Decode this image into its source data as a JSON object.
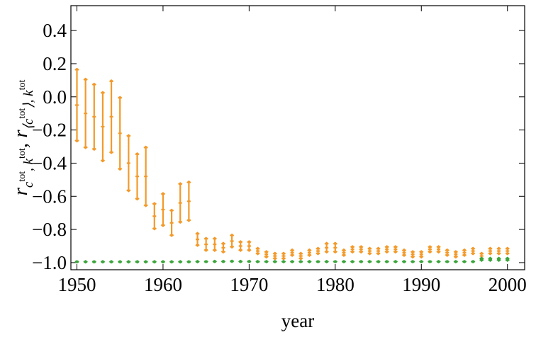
{
  "chart_data": {
    "type": "errorbar",
    "x_label": "year",
    "y_label": [
      "r",
      "c",
      "tot",
      ", ",
      "k",
      "tot",
      ", ",
      "r",
      "⟨c",
      "tot",
      "⟩, ",
      "k",
      "tot"
    ],
    "x": [
      1950,
      1951,
      1952,
      1953,
      1954,
      1955,
      1956,
      1957,
      1958,
      1959,
      1960,
      1961,
      1962,
      1963,
      1964,
      1965,
      1966,
      1967,
      1968,
      1969,
      1970,
      1971,
      1972,
      1973,
      1974,
      1975,
      1976,
      1977,
      1978,
      1979,
      1980,
      1981,
      1982,
      1983,
      1984,
      1985,
      1986,
      1987,
      1988,
      1989,
      1990,
      1991,
      1992,
      1993,
      1994,
      1995,
      1996,
      1997,
      1998,
      1999,
      2000
    ],
    "series": [
      {
        "color": "#f39a2a",
        "values": [
          -0.05,
          -0.1,
          -0.12,
          -0.18,
          -0.12,
          -0.22,
          -0.4,
          -0.48,
          -0.48,
          -0.72,
          -0.68,
          -0.76,
          -0.64,
          -0.63,
          -0.86,
          -0.89,
          -0.89,
          -0.91,
          -0.87,
          -0.9,
          -0.9,
          -0.93,
          -0.95,
          -0.96,
          -0.96,
          -0.94,
          -0.96,
          -0.94,
          -0.93,
          -0.91,
          -0.91,
          -0.94,
          -0.92,
          -0.92,
          -0.93,
          -0.93,
          -0.92,
          -0.92,
          -0.94,
          -0.95,
          -0.95,
          -0.92,
          -0.92,
          -0.94,
          -0.95,
          -0.94,
          -0.93,
          -0.96,
          -0.93,
          -0.93,
          -0.93
        ],
        "errors": [
          0.22,
          0.21,
          0.2,
          0.21,
          0.22,
          0.22,
          0.17,
          0.14,
          0.18,
          0.08,
          0.1,
          0.08,
          0.12,
          0.12,
          0.04,
          0.04,
          0.04,
          0.03,
          0.04,
          0.03,
          0.03,
          0.02,
          0.02,
          0.02,
          0.02,
          0.02,
          0.02,
          0.02,
          0.02,
          0.03,
          0.03,
          0.02,
          0.02,
          0.02,
          0.02,
          0.02,
          0.02,
          0.02,
          0.02,
          0.02,
          0.02,
          0.02,
          0.02,
          0.02,
          0.02,
          0.02,
          0.02,
          0.02,
          0.02,
          0.02,
          0.02
        ]
      },
      {
        "color": "#3ba53b",
        "values": [
          -0.995,
          -0.995,
          -0.995,
          -0.995,
          -0.995,
          -0.995,
          -0.995,
          -0.995,
          -0.995,
          -0.995,
          -0.995,
          -0.995,
          -0.995,
          -0.995,
          -0.994,
          -0.994,
          -0.993,
          -0.993,
          -0.992,
          -0.993,
          -0.993,
          -0.994,
          -0.994,
          -0.994,
          -0.994,
          -0.994,
          -0.994,
          -0.994,
          -0.994,
          -0.994,
          -0.994,
          -0.994,
          -0.994,
          -0.994,
          -0.994,
          -0.994,
          -0.994,
          -0.994,
          -0.994,
          -0.994,
          -0.994,
          -0.994,
          -0.994,
          -0.994,
          -0.994,
          -0.994,
          -0.994,
          -0.98,
          -0.98,
          -0.98,
          -0.98
        ],
        "errors": [
          0.005,
          0.005,
          0.005,
          0.005,
          0.005,
          0.005,
          0.005,
          0.005,
          0.005,
          0.005,
          0.005,
          0.005,
          0.005,
          0.005,
          0.005,
          0.005,
          0.005,
          0.005,
          0.005,
          0.005,
          0.005,
          0.005,
          0.005,
          0.005,
          0.005,
          0.005,
          0.005,
          0.005,
          0.005,
          0.005,
          0.005,
          0.005,
          0.005,
          0.005,
          0.005,
          0.005,
          0.005,
          0.005,
          0.005,
          0.005,
          0.005,
          0.005,
          0.005,
          0.005,
          0.005,
          0.005,
          0.005,
          0.01,
          0.01,
          0.01,
          0.01
        ]
      }
    ],
    "xlim": [
      1949.3,
      2002
    ],
    "ylim": [
      -1.043,
      0.55
    ],
    "xticks": [
      1950,
      1960,
      1970,
      1980,
      1990,
      2000
    ],
    "yticks": [
      {
        "value": -1.0,
        "label": "−1.0"
      },
      {
        "value": -0.8,
        "label": "−0.8"
      },
      {
        "value": -0.6,
        "label": "−0.6"
      },
      {
        "value": -0.4,
        "label": "−0.4"
      },
      {
        "value": -0.2,
        "label": "−0.2"
      },
      {
        "value": 0.0,
        "label": "0.0"
      },
      {
        "value": 0.2,
        "label": "0.2"
      },
      {
        "value": 0.4,
        "label": "0.4"
      }
    ]
  }
}
